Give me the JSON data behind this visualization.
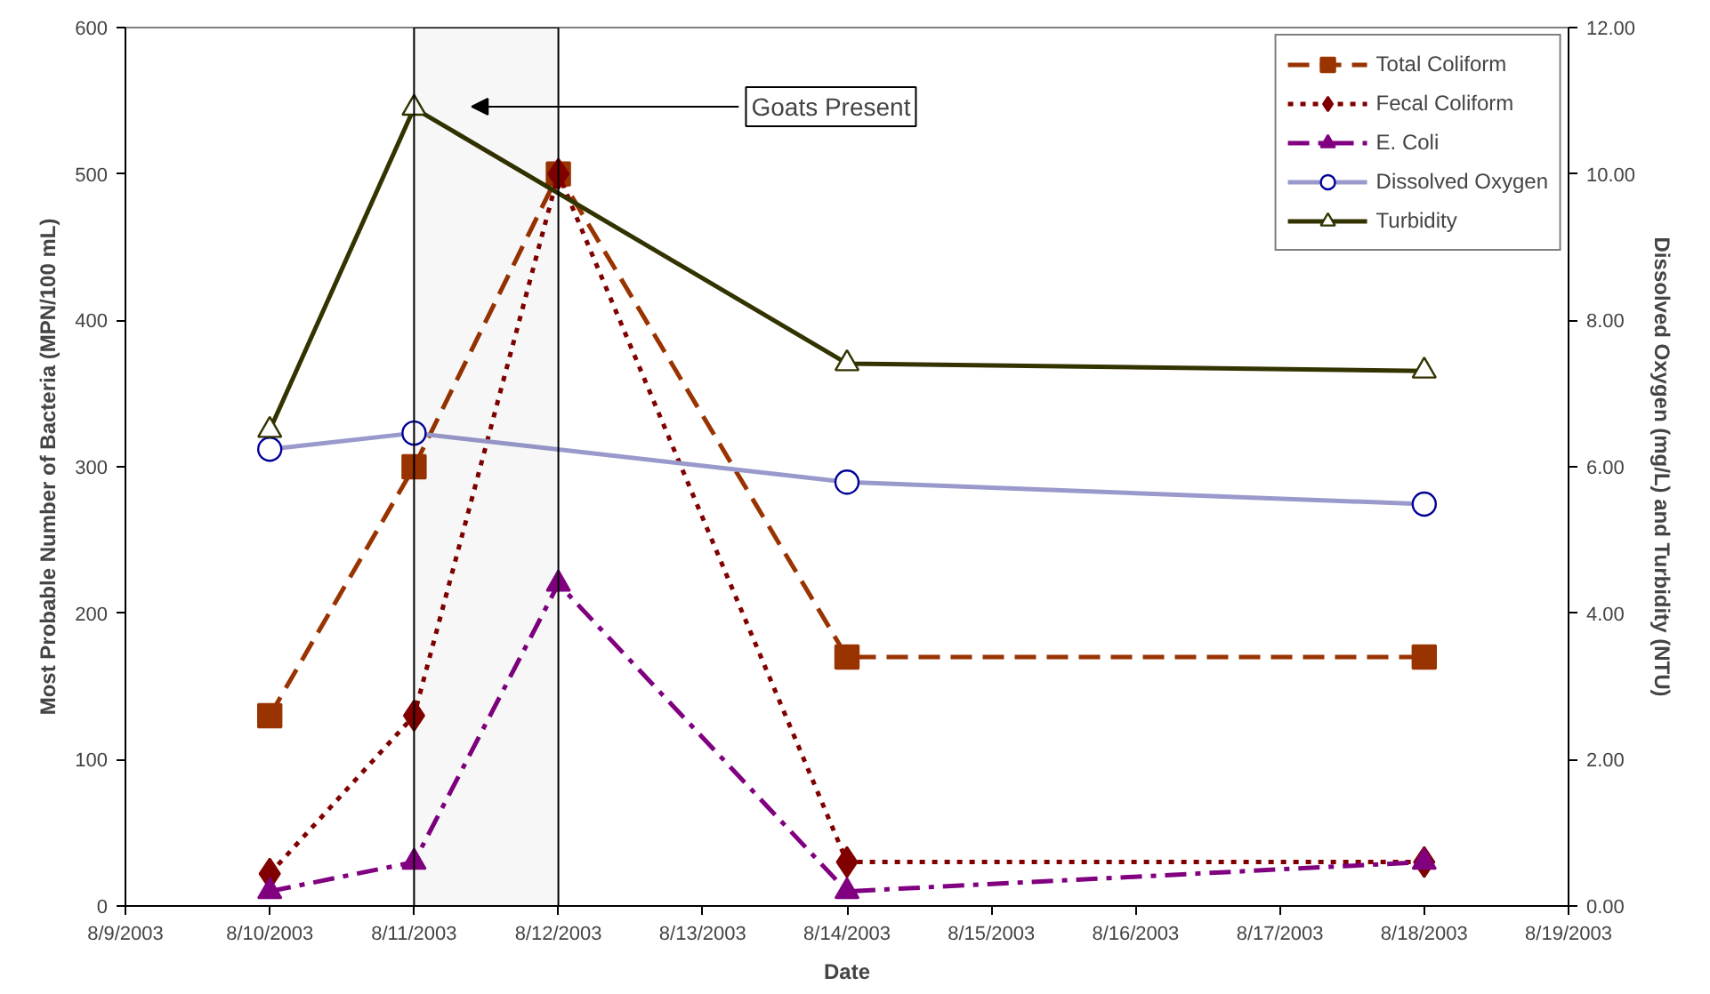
{
  "chart_data": {
    "type": "line",
    "xlabel": "Date",
    "ylabel": "Most Probable Number of Bacteria (MPN/100 mL)",
    "y2label": "Dissolved Oxygen (mg/L) and Turbidity (NTU)",
    "xlim": [
      "2003-08-09",
      "2003-08-19"
    ],
    "xticks": [
      {
        "value": "2003-08-09",
        "label": "8/9/2003"
      },
      {
        "value": "2003-08-10",
        "label": "8/10/2003"
      },
      {
        "value": "2003-08-11",
        "label": "8/11/2003"
      },
      {
        "value": "2003-08-12",
        "label": "8/12/2003"
      },
      {
        "value": "2003-08-13",
        "label": "8/13/2003"
      },
      {
        "value": "2003-08-14",
        "label": "8/14/2003"
      },
      {
        "value": "2003-08-15",
        "label": "8/15/2003"
      },
      {
        "value": "2003-08-16",
        "label": "8/16/2003"
      },
      {
        "value": "2003-08-17",
        "label": "8/17/2003"
      },
      {
        "value": "2003-08-18",
        "label": "8/18/2003"
      },
      {
        "value": "2003-08-19",
        "label": "8/19/2003"
      }
    ],
    "ylim": [
      0,
      600
    ],
    "yticks": [
      0,
      100,
      200,
      300,
      400,
      500,
      600
    ],
    "y2lim": [
      0,
      12
    ],
    "y2ticks": [
      {
        "value": 0,
        "label": "0.00"
      },
      {
        "value": 2,
        "label": "2.00"
      },
      {
        "value": 4,
        "label": "4.00"
      },
      {
        "value": 6,
        "label": "6.00"
      },
      {
        "value": 8,
        "label": "8.00"
      },
      {
        "value": 10,
        "label": "10.00"
      },
      {
        "value": 12,
        "label": "12.00"
      }
    ],
    "grid": false,
    "legend": "top right",
    "bands": [
      {
        "axis": "x",
        "from": "2003-08-11",
        "to": "2003-08-12",
        "label": "Goats Present",
        "color": "#000000"
      }
    ],
    "series": [
      {
        "name": "Total Coliform",
        "color": "#993300",
        "marker": "square",
        "line_style": "dashed",
        "x": [
          "2003-08-10",
          "2003-08-11",
          "2003-08-12",
          "2003-08-14",
          "2003-08-18"
        ],
        "values": [
          130,
          300,
          500,
          170,
          170
        ]
      },
      {
        "name": "Fecal Coliform",
        "color": "#800000",
        "marker": "diamond",
        "line_style": "dotted",
        "x": [
          "2003-08-10",
          "2003-08-11",
          "2003-08-12",
          "2003-08-14",
          "2003-08-18"
        ],
        "values": [
          22,
          130,
          500,
          30,
          30
        ]
      },
      {
        "name": "E. Coli",
        "color": "#800080",
        "marker": "triangle",
        "line_style": "dashdot",
        "x": [
          "2003-08-10",
          "2003-08-11",
          "2003-08-12",
          "2003-08-14",
          "2003-08-18"
        ],
        "values": [
          10,
          30,
          220,
          10,
          30
        ]
      },
      {
        "name": "Dissolved Oxygen",
        "color": "#9999cc",
        "marker": "circle",
        "line_style": "solid",
        "axis": "y2",
        "x": [
          "2003-08-10",
          "2003-08-11",
          "2003-08-14",
          "2003-08-18"
        ],
        "values": [
          6.24,
          6.46,
          5.79,
          5.49
        ]
      },
      {
        "name": "Turbidity",
        "color": "#333300",
        "marker": "triangle",
        "line_style": "solid",
        "axis": "y2",
        "x": [
          "2003-08-10",
          "2003-08-11",
          "2003-08-14",
          "2003-08-18"
        ],
        "values": [
          6.5,
          10.9,
          7.41,
          7.31
        ]
      }
    ]
  }
}
